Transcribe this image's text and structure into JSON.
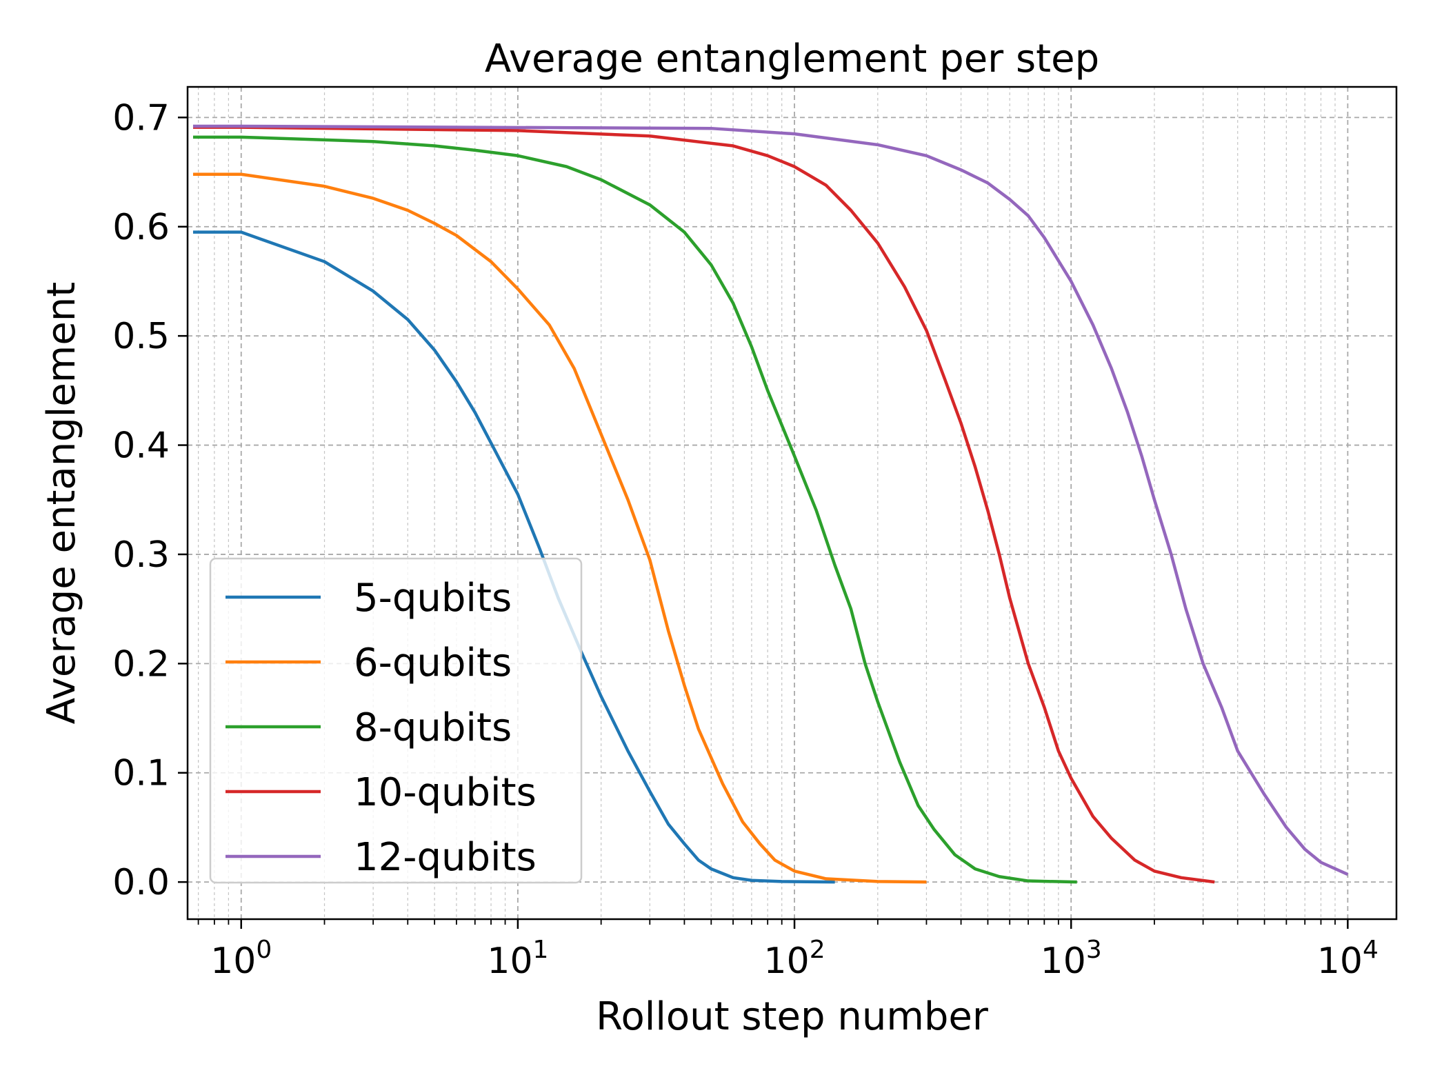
{
  "chart_data": {
    "type": "line",
    "title": "Average entanglement per step",
    "xlabel": "Rollout step number",
    "ylabel": "Average entanglement",
    "xscale": "log",
    "xlim": [
      0.64,
      15000
    ],
    "ylim": [
      -0.034,
      0.728
    ],
    "x_ticks": [
      {
        "value": 1,
        "base": "10",
        "exp": "0"
      },
      {
        "value": 10,
        "base": "10",
        "exp": "1"
      },
      {
        "value": 100,
        "base": "10",
        "exp": "2"
      },
      {
        "value": 1000,
        "base": "10",
        "exp": "3"
      },
      {
        "value": 10000,
        "base": "10",
        "exp": "4"
      }
    ],
    "y_ticks": [
      "0.0",
      "0.1",
      "0.2",
      "0.3",
      "0.4",
      "0.5",
      "0.6",
      "0.7"
    ],
    "grid": true,
    "legend_position": "lower-left",
    "series": [
      {
        "name": "5-qubits",
        "color": "#1f77b4",
        "points": [
          [
            0.67,
            0.595
          ],
          [
            1,
            0.595
          ],
          [
            2,
            0.568
          ],
          [
            3,
            0.541
          ],
          [
            4,
            0.515
          ],
          [
            5,
            0.487
          ],
          [
            6,
            0.458
          ],
          [
            7,
            0.43
          ],
          [
            8,
            0.402
          ],
          [
            10,
            0.355
          ],
          [
            12,
            0.305
          ],
          [
            14,
            0.26
          ],
          [
            17,
            0.21
          ],
          [
            20,
            0.17
          ],
          [
            25,
            0.12
          ],
          [
            30,
            0.083
          ],
          [
            35,
            0.053
          ],
          [
            40,
            0.035
          ],
          [
            45,
            0.02
          ],
          [
            50,
            0.012
          ],
          [
            60,
            0.004
          ],
          [
            70,
            0.0015
          ],
          [
            90,
            0.0005
          ],
          [
            140,
            0.0
          ]
        ]
      },
      {
        "name": "6-qubits",
        "color": "#ff7f0e",
        "points": [
          [
            0.67,
            0.648
          ],
          [
            1,
            0.648
          ],
          [
            2,
            0.637
          ],
          [
            3,
            0.626
          ],
          [
            4,
            0.615
          ],
          [
            5,
            0.603
          ],
          [
            6,
            0.592
          ],
          [
            8,
            0.568
          ],
          [
            10,
            0.543
          ],
          [
            13,
            0.51
          ],
          [
            16,
            0.47
          ],
          [
            20,
            0.41
          ],
          [
            25,
            0.35
          ],
          [
            30,
            0.295
          ],
          [
            35,
            0.23
          ],
          [
            40,
            0.18
          ],
          [
            45,
            0.14
          ],
          [
            55,
            0.09
          ],
          [
            65,
            0.055
          ],
          [
            75,
            0.035
          ],
          [
            85,
            0.02
          ],
          [
            100,
            0.01
          ],
          [
            130,
            0.003
          ],
          [
            200,
            0.0005
          ],
          [
            300,
            0.0
          ]
        ]
      },
      {
        "name": "8-qubits",
        "color": "#2ca02c",
        "points": [
          [
            0.67,
            0.682
          ],
          [
            1,
            0.682
          ],
          [
            3,
            0.678
          ],
          [
            5,
            0.674
          ],
          [
            7,
            0.67
          ],
          [
            10,
            0.665
          ],
          [
            15,
            0.655
          ],
          [
            20,
            0.643
          ],
          [
            30,
            0.62
          ],
          [
            40,
            0.595
          ],
          [
            50,
            0.565
          ],
          [
            60,
            0.53
          ],
          [
            70,
            0.49
          ],
          [
            80,
            0.45
          ],
          [
            100,
            0.39
          ],
          [
            120,
            0.34
          ],
          [
            140,
            0.29
          ],
          [
            160,
            0.25
          ],
          [
            180,
            0.2
          ],
          [
            200,
            0.165
          ],
          [
            240,
            0.11
          ],
          [
            280,
            0.07
          ],
          [
            320,
            0.048
          ],
          [
            380,
            0.025
          ],
          [
            450,
            0.012
          ],
          [
            550,
            0.005
          ],
          [
            700,
            0.001
          ],
          [
            1050,
            0.0
          ]
        ]
      },
      {
        "name": "10-qubits",
        "color": "#d62728",
        "points": [
          [
            0.67,
            0.691
          ],
          [
            1,
            0.691
          ],
          [
            10,
            0.688
          ],
          [
            30,
            0.683
          ],
          [
            60,
            0.674
          ],
          [
            80,
            0.665
          ],
          [
            100,
            0.655
          ],
          [
            130,
            0.638
          ],
          [
            160,
            0.615
          ],
          [
            200,
            0.585
          ],
          [
            250,
            0.545
          ],
          [
            300,
            0.505
          ],
          [
            350,
            0.46
          ],
          [
            400,
            0.42
          ],
          [
            450,
            0.38
          ],
          [
            500,
            0.34
          ],
          [
            550,
            0.3
          ],
          [
            600,
            0.26
          ],
          [
            700,
            0.2
          ],
          [
            800,
            0.16
          ],
          [
            900,
            0.12
          ],
          [
            1000,
            0.095
          ],
          [
            1200,
            0.06
          ],
          [
            1400,
            0.04
          ],
          [
            1700,
            0.02
          ],
          [
            2000,
            0.01
          ],
          [
            2500,
            0.004
          ],
          [
            3300,
            0.0
          ]
        ]
      },
      {
        "name": "12-qubits",
        "color": "#9467bd",
        "points": [
          [
            0.67,
            0.692
          ],
          [
            1,
            0.692
          ],
          [
            50,
            0.69
          ],
          [
            100,
            0.685
          ],
          [
            200,
            0.675
          ],
          [
            300,
            0.665
          ],
          [
            400,
            0.652
          ],
          [
            500,
            0.64
          ],
          [
            600,
            0.625
          ],
          [
            700,
            0.61
          ],
          [
            800,
            0.59
          ],
          [
            1000,
            0.55
          ],
          [
            1200,
            0.51
          ],
          [
            1400,
            0.47
          ],
          [
            1600,
            0.43
          ],
          [
            1800,
            0.39
          ],
          [
            2000,
            0.35
          ],
          [
            2300,
            0.3
          ],
          [
            2600,
            0.25
          ],
          [
            3000,
            0.2
          ],
          [
            3500,
            0.16
          ],
          [
            4000,
            0.12
          ],
          [
            5000,
            0.08
          ],
          [
            6000,
            0.05
          ],
          [
            7000,
            0.03
          ],
          [
            8000,
            0.018
          ],
          [
            10000,
            0.007
          ]
        ]
      }
    ]
  }
}
